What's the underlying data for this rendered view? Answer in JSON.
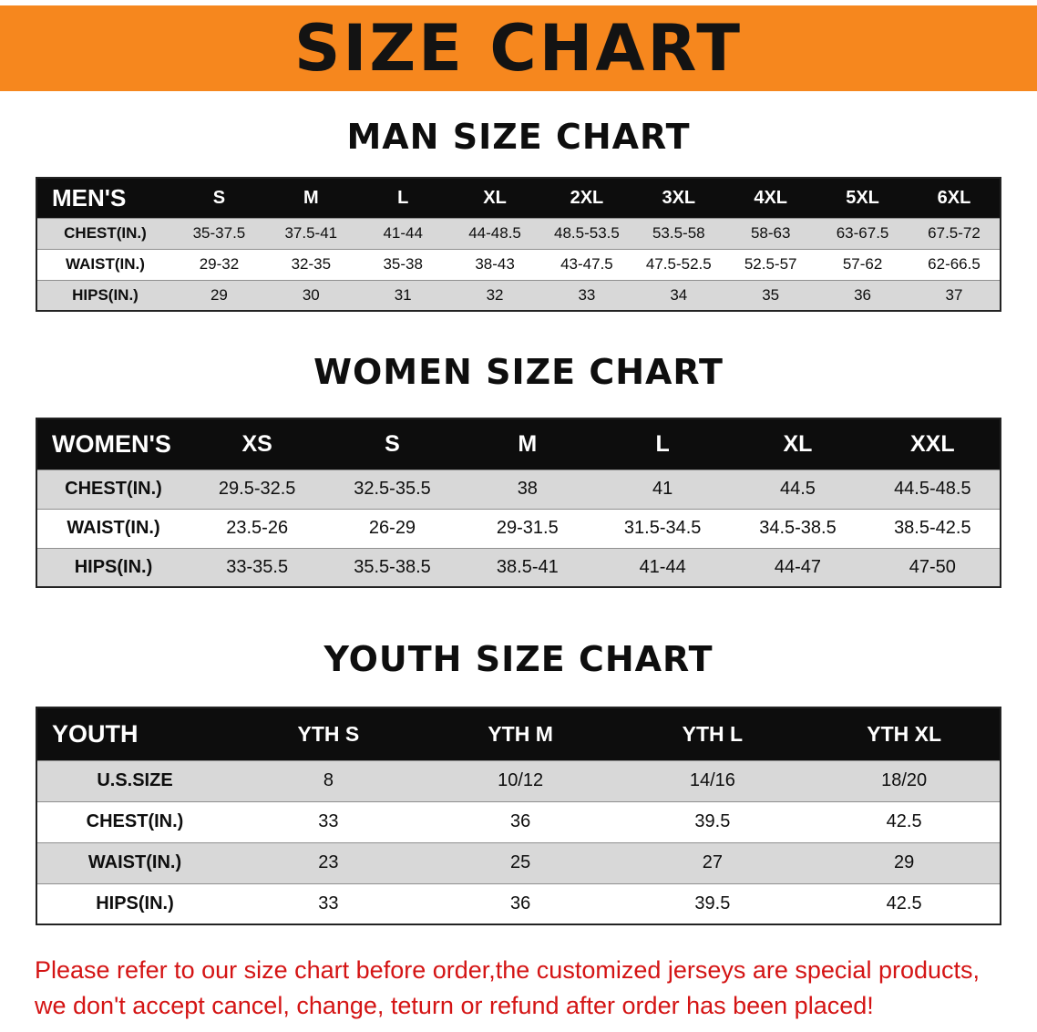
{
  "banner": {
    "title": "SIZE CHART",
    "bg_color": "#F6871E"
  },
  "chart_data": [
    {
      "type": "table",
      "title": "MAN SIZE CHART",
      "columns": [
        "MEN'S",
        "S",
        "M",
        "L",
        "XL",
        "2XL",
        "3XL",
        "4XL",
        "5XL",
        "6XL"
      ],
      "rows": [
        [
          "CHEST(IN.)",
          "35-37.5",
          "37.5-41",
          "41-44",
          "44-48.5",
          "48.5-53.5",
          "53.5-58",
          "58-63",
          "63-67.5",
          "67.5-72"
        ],
        [
          "WAIST(IN.)",
          "29-32",
          "32-35",
          "35-38",
          "38-43",
          "43-47.5",
          "47.5-52.5",
          "52.5-57",
          "57-62",
          "62-66.5"
        ],
        [
          "HIPS(IN.)",
          "29",
          "30",
          "31",
          "32",
          "33",
          "34",
          "35",
          "36",
          "37"
        ]
      ]
    },
    {
      "type": "table",
      "title": "WOMEN SIZE CHART",
      "columns": [
        "WOMEN'S",
        "XS",
        "S",
        "M",
        "L",
        "XL",
        "XXL"
      ],
      "rows": [
        [
          "CHEST(IN.)",
          "29.5-32.5",
          "32.5-35.5",
          "38",
          "41",
          "44.5",
          "44.5-48.5"
        ],
        [
          "WAIST(IN.)",
          "23.5-26",
          "26-29",
          "29-31.5",
          "31.5-34.5",
          "34.5-38.5",
          "38.5-42.5"
        ],
        [
          "HIPS(IN.)",
          "33-35.5",
          "35.5-38.5",
          "38.5-41",
          "41-44",
          "44-47",
          "47-50"
        ]
      ]
    },
    {
      "type": "table",
      "title": "YOUTH SIZE CHART",
      "columns": [
        "YOUTH",
        "YTH S",
        "YTH M",
        "YTH L",
        "YTH XL"
      ],
      "rows": [
        [
          "U.S.SIZE",
          "8",
          "10/12",
          "14/16",
          "18/20"
        ],
        [
          "CHEST(IN.)",
          "33",
          "36",
          "39.5",
          "42.5"
        ],
        [
          "WAIST(IN.)",
          "23",
          "25",
          "27",
          "29"
        ],
        [
          "HIPS(IN.)",
          "33",
          "36",
          "39.5",
          "42.5"
        ]
      ]
    }
  ],
  "footer": {
    "line1": "Please refer to our size chart before order,the customized jerseys are special products,",
    "line2": "we don't accept cancel, change, teturn or refund after order has been placed!",
    "text_color": "#D41414"
  },
  "colors": {
    "banner_bg": "#F6871E",
    "table_header_bg": "#0d0d0d",
    "row_shaded": "#d8d8d8",
    "row_plain": "#ffffff"
  }
}
